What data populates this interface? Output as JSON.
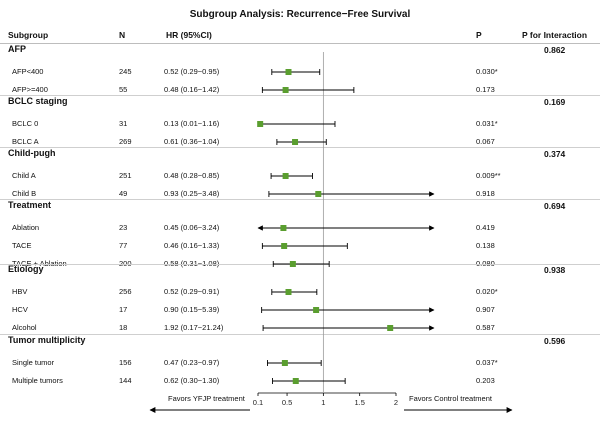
{
  "title": "Subgroup Analysis: Recurrence−Free Survival",
  "columns": {
    "subgroup": "Subgroup",
    "n": "N",
    "hr": "HR (95%CI)",
    "p": "P",
    "p_interaction": "P for Interaction"
  },
  "groups": [
    {
      "name": "AFP",
      "p_interaction": "0.862",
      "rows": [
        {
          "label": "AFP<400",
          "n": "245",
          "hr_text": "0.52 (0.29−0.95)",
          "p": "0.030*"
        },
        {
          "label": "AFP>=400",
          "n": "55",
          "hr_text": "0.48 (0.16−1.42)",
          "p": "0.173"
        }
      ]
    },
    {
      "name": "BCLC staging",
      "p_interaction": "0.169",
      "rows": [
        {
          "label": "BCLC 0",
          "n": "31",
          "hr_text": "0.13 (0.01−1.16)",
          "p": "0.031*"
        },
        {
          "label": "BCLC A",
          "n": "269",
          "hr_text": "0.61 (0.36−1.04)",
          "p": "0.067"
        }
      ]
    },
    {
      "name": "Child-pugh",
      "p_interaction": "0.374",
      "rows": [
        {
          "label": "Child A",
          "n": "251",
          "hr_text": "0.48 (0.28−0.85)",
          "p": "0.009**"
        },
        {
          "label": "Child B",
          "n": "49",
          "hr_text": "0.93 (0.25−3.48)",
          "p": "0.918"
        }
      ]
    },
    {
      "name": "Treatment",
      "p_interaction": "0.694",
      "rows": [
        {
          "label": "Ablation",
          "n": "23",
          "hr_text": "0.45 (0.06−3.24)",
          "p": "0.419"
        },
        {
          "label": "TACE",
          "n": "77",
          "hr_text": "0.46 (0.16−1.33)",
          "p": "0.138"
        },
        {
          "label": "TACE + Ablation",
          "n": "200",
          "hr_text": "0.58 (0.31−1.08)",
          "p": "0.080"
        }
      ]
    },
    {
      "name": "Etiology",
      "p_interaction": "0.938",
      "rows": [
        {
          "label": "HBV",
          "n": "256",
          "hr_text": "0.52 (0.29−0.91)",
          "p": "0.020*"
        },
        {
          "label": "HCV",
          "n": "17",
          "hr_text": "0.90 (0.15−5.39)",
          "p": "0.907"
        },
        {
          "label": "Alcohol",
          "n": "18",
          "hr_text": "1.92 (0.17−21.24)",
          "p": "0.587"
        }
      ]
    },
    {
      "name": "Tumor multiplicity",
      "p_interaction": "0.596",
      "rows": [
        {
          "label": "Single tumor",
          "n": "156",
          "hr_text": "0.47 (0.23−0.97)",
          "p": "0.037*"
        },
        {
          "label": "Multiple tumors",
          "n": "144",
          "hr_text": "0.62 (0.30−1.30)",
          "p": "0.203"
        }
      ]
    }
  ],
  "chart_data": {
    "type": "forest",
    "title": "Subgroup Analysis: Recurrence−Free Survival",
    "xlim": [
      0.1,
      2.0
    ],
    "xticks": [
      0.1,
      0.5,
      1,
      1.5,
      2
    ],
    "xtick_labels": [
      "0.1",
      "0.5",
      "1",
      "1.5",
      "2"
    ],
    "reference_line": 1,
    "point_color": "#5a9e2f",
    "line_color": "#000000",
    "favors_left": "Favors YFJP treatment",
    "favors_right": "Favors Control treatment",
    "points": [
      {
        "label": "AFP<400",
        "hr": 0.52,
        "lo": 0.29,
        "hi": 0.95
      },
      {
        "label": "AFP>=400",
        "hr": 0.48,
        "lo": 0.16,
        "hi": 1.42
      },
      {
        "label": "BCLC 0",
        "hr": 0.13,
        "lo": 0.01,
        "hi": 1.16
      },
      {
        "label": "BCLC A",
        "hr": 0.61,
        "lo": 0.36,
        "hi": 1.04
      },
      {
        "label": "Child A",
        "hr": 0.48,
        "lo": 0.28,
        "hi": 0.85
      },
      {
        "label": "Child B",
        "hr": 0.93,
        "lo": 0.25,
        "hi": 3.48
      },
      {
        "label": "Ablation",
        "hr": 0.45,
        "lo": 0.06,
        "hi": 3.24
      },
      {
        "label": "TACE",
        "hr": 0.46,
        "lo": 0.16,
        "hi": 1.33
      },
      {
        "label": "TACE + Ablation",
        "hr": 0.58,
        "lo": 0.31,
        "hi": 1.08
      },
      {
        "label": "HBV",
        "hr": 0.52,
        "lo": 0.29,
        "hi": 0.91
      },
      {
        "label": "HCV",
        "hr": 0.9,
        "lo": 0.15,
        "hi": 5.39
      },
      {
        "label": "Alcohol",
        "hr": 1.92,
        "lo": 0.17,
        "hi": 21.24
      },
      {
        "label": "Single tumor",
        "hr": 0.47,
        "lo": 0.23,
        "hi": 0.97
      },
      {
        "label": "Multiple tumors",
        "hr": 0.62,
        "lo": 0.3,
        "hi": 1.3
      }
    ]
  }
}
